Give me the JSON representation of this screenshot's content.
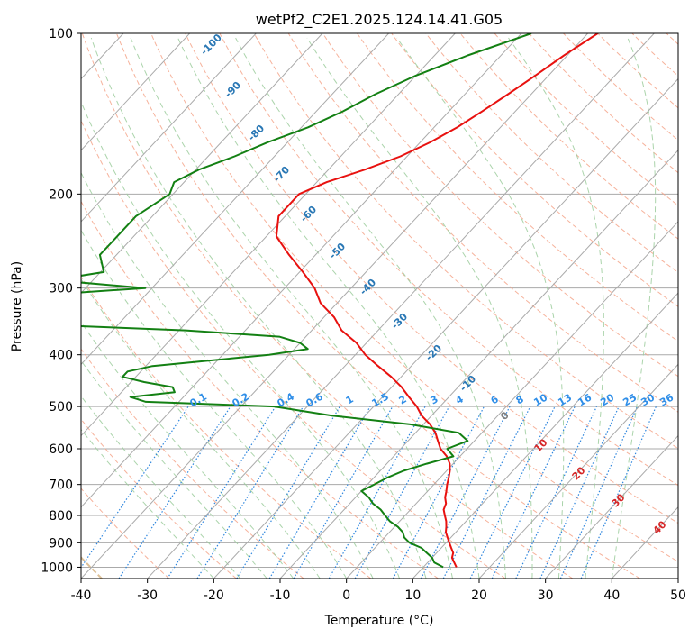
{
  "chart_data": {
    "type": "line",
    "title": "wetPf2_C2E1.2025.124.14.41.G05",
    "xlabel": "Temperature (°C)",
    "ylabel": "Pressure (hPa)",
    "xlim": [
      -40,
      50
    ],
    "ylim": [
      1050,
      100
    ],
    "y_scale": "log",
    "x_ticks": [
      -40,
      -30,
      -20,
      -10,
      0,
      10,
      20,
      30,
      40,
      50
    ],
    "y_ticks": [
      100,
      200,
      300,
      400,
      500,
      600,
      700,
      800,
      900,
      1000
    ],
    "grid": true,
    "skew": true,
    "colors": {
      "temperature": "#e8110f",
      "dewpoint": "#138013",
      "isotherm": "#aaaaaa",
      "dry_adiabat": "#f4a58a",
      "moist_adiabat": "#9ccc9c",
      "mixing_ratio": "#2e86de",
      "mixing_ratio_label": "#2f8ee8",
      "isotherm_label": "#2a78b5",
      "red_label": "#d62728",
      "gray_label": "#7f7f7f"
    },
    "series": [
      {
        "pressure": [
          100,
          110,
          120,
          130,
          140,
          150,
          160,
          170,
          180,
          190,
          200,
          220,
          240,
          260,
          280,
          300,
          320,
          340,
          360,
          380,
          400,
          420,
          440,
          460,
          480,
          500,
          520,
          540,
          560,
          580,
          600,
          620,
          640,
          660,
          680,
          700,
          720,
          740,
          760,
          780,
          800,
          820,
          840,
          860,
          880,
          900,
          920,
          940,
          960,
          980,
          1000
        ],
        "values": [
          -38.5,
          -40.5,
          -42.0,
          -43.5,
          -45.0,
          -46.5,
          -48.5,
          -51.0,
          -54.5,
          -58.5,
          -61.0,
          -61.0,
          -58.5,
          -54.0,
          -49.5,
          -45.5,
          -42.5,
          -38.5,
          -35.5,
          -31.5,
          -28.5,
          -25.0,
          -21.5,
          -18.5,
          -16.0,
          -13.5,
          -11.5,
          -9.0,
          -7.0,
          -5.5,
          -4.0,
          -2.0,
          -0.5,
          0.5,
          1.3,
          2.0,
          2.8,
          3.5,
          4.5,
          5.0,
          6.0,
          7.0,
          7.8,
          8.5,
          9.5,
          10.5,
          11.5,
          12.5,
          13.0,
          14.0,
          15.0
        ]
      },
      {
        "pressure": [
          100,
          110,
          120,
          130,
          140,
          150,
          160,
          170,
          180,
          190,
          200,
          220,
          240,
          260,
          280,
          290,
          300,
          310,
          320,
          330,
          340,
          350,
          360,
          370,
          380,
          390,
          400,
          410,
          420,
          430,
          440,
          450,
          460,
          470,
          480,
          490,
          500,
          520,
          540,
          560,
          580,
          600,
          620,
          640,
          660,
          680,
          700,
          720,
          740,
          760,
          780,
          800,
          820,
          840,
          860,
          880,
          900,
          920,
          940,
          960,
          980,
          1000
        ],
        "values": [
          -48.5,
          -55.0,
          -60.0,
          -63.5,
          -66.0,
          -69.0,
          -73.0,
          -76.0,
          -79.5,
          -81.5,
          -80.5,
          -82.5,
          -82.5,
          -82.5,
          -79.5,
          -86.0,
          -71.0,
          -87.0,
          -95.0,
          -93.0,
          -93.0,
          -85.0,
          -59.0,
          -44.0,
          -40.0,
          -38.0,
          -43.0,
          -51.0,
          -59.0,
          -62.0,
          -62.0,
          -58.0,
          -53.0,
          -52.0,
          -58.0,
          -55.0,
          -35.0,
          -25.0,
          -12.0,
          -3.5,
          -1.0,
          -3.0,
          -1.0,
          -4.0,
          -6.5,
          -8.0,
          -9.0,
          -10.0,
          -8.0,
          -6.5,
          -4.5,
          -3.0,
          -1.5,
          0.5,
          2.0,
          3.0,
          4.5,
          7.0,
          8.5,
          10.0,
          11.0,
          13.0
        ]
      }
    ],
    "isotherm_labels": [
      "-100",
      "-90",
      "-80",
      "-70",
      "-60",
      "-50",
      "-40",
      "-30",
      "-20",
      "-10"
    ],
    "mixing_ratio_labels": [
      "0.1",
      "0.2",
      "0.4",
      "0.6",
      "1",
      "1.5",
      "2",
      "3",
      "4",
      "6",
      "8",
      "10",
      "13",
      "16",
      "20",
      "25",
      "30",
      "36"
    ],
    "wetbulb_labels": [
      "0",
      "10",
      "20",
      "30",
      "40"
    ]
  }
}
